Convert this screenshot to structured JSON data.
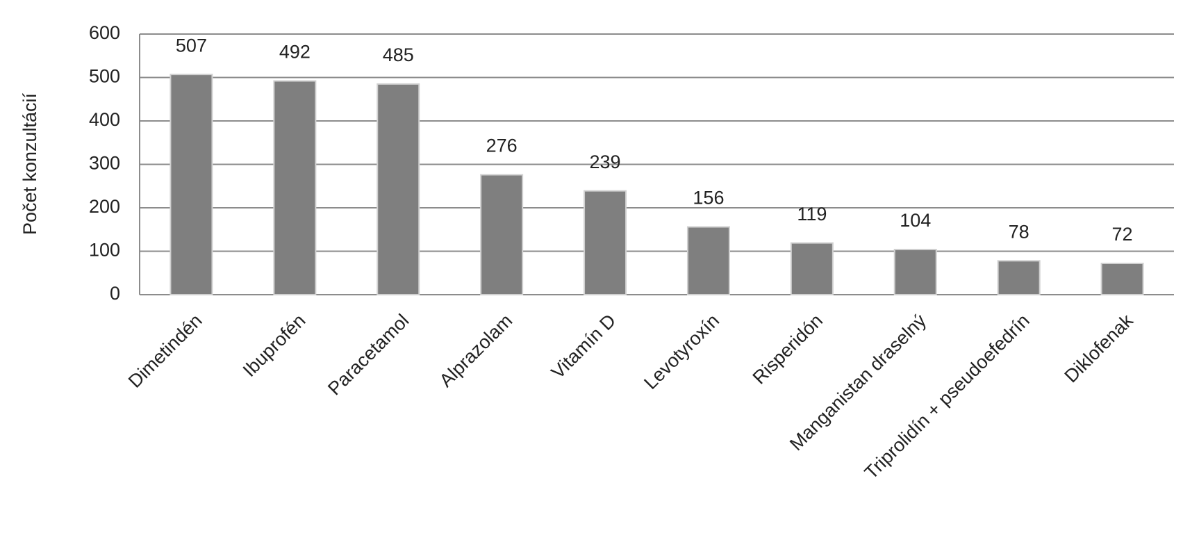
{
  "chart_data": {
    "type": "bar",
    "y_label": "Počet konzultácií",
    "categories": [
      "Dimetindén",
      "Ibuprofén",
      "Paracetamol",
      "Alprazolam",
      "Vitamín D",
      "Levotyroxín",
      "Risperidón",
      "Manganistan draselný",
      "Triprolidín + pseudoefedrín",
      "Diklofenak"
    ],
    "values": [
      507,
      492,
      485,
      276,
      239,
      156,
      119,
      104,
      78,
      72
    ],
    "color": "#7f7f7f",
    "ylim": [
      0,
      600
    ],
    "yticks": [
      0,
      100,
      200,
      300,
      400,
      500,
      600
    ],
    "grid": true
  }
}
